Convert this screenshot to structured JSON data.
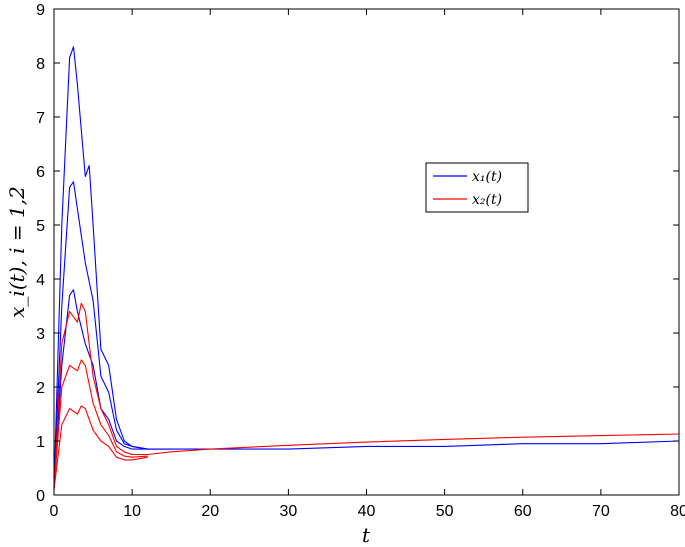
{
  "chart_data": {
    "type": "line",
    "title": "",
    "xlabel": "t",
    "ylabel": "x_i(t), i = 1,2",
    "xlim": [
      0,
      80
    ],
    "ylim": [
      0,
      9
    ],
    "x_ticks": [
      "0",
      "10",
      "20",
      "30",
      "40",
      "50",
      "60",
      "70",
      "80"
    ],
    "y_ticks": [
      "0",
      "1",
      "2",
      "3",
      "4",
      "5",
      "6",
      "7",
      "8",
      "9"
    ],
    "grid": false,
    "legend_position": "upper-right",
    "legend": [
      {
        "label": "x₁(t)",
        "color": "#0000ff"
      },
      {
        "label": "x₂(t)",
        "color": "#ff0000"
      }
    ],
    "series": [
      {
        "name": "x₁(t)",
        "color": "#0000ff",
        "x": [
          0,
          1,
          2,
          2.5,
          3,
          4,
          4.5,
          5,
          6,
          7,
          8,
          9,
          10,
          12,
          15,
          20,
          30,
          40,
          50,
          60,
          70,
          80
        ],
        "y": [
          0.1,
          5.0,
          8.1,
          8.3,
          7.6,
          5.9,
          6.1,
          5.0,
          2.7,
          2.4,
          1.4,
          1.0,
          0.9,
          0.85,
          0.85,
          0.85,
          0.85,
          0.9,
          0.9,
          0.95,
          0.95,
          1.0
        ]
      },
      {
        "name": "x₁(t)",
        "color": "#0000ff",
        "x": [
          0,
          1,
          2,
          2.5,
          3,
          4,
          5,
          6,
          7,
          8,
          9,
          10,
          12,
          15
        ],
        "y": [
          0.1,
          3.5,
          5.7,
          5.8,
          5.3,
          4.3,
          3.6,
          2.2,
          1.9,
          1.2,
          0.95,
          0.9,
          0.85,
          0.85
        ]
      },
      {
        "name": "x₁(t)",
        "color": "#0000ff",
        "x": [
          0,
          1,
          2,
          2.5,
          3,
          4,
          5,
          6,
          7,
          8,
          9,
          10,
          12
        ],
        "y": [
          0.1,
          2.4,
          3.7,
          3.8,
          3.4,
          2.8,
          2.4,
          1.6,
          1.4,
          1.0,
          0.9,
          0.85,
          0.85
        ]
      },
      {
        "name": "x₂(t)",
        "color": "#ff0000",
        "x": [
          0,
          1,
          2,
          3,
          3.5,
          4,
          5,
          6,
          7,
          8,
          9,
          10,
          12,
          15,
          20,
          30,
          40,
          50,
          60,
          70,
          80
        ],
        "y": [
          0.1,
          2.8,
          3.4,
          3.2,
          3.55,
          3.4,
          2.2,
          1.6,
          1.3,
          0.9,
          0.8,
          0.75,
          0.75,
          0.8,
          0.85,
          0.92,
          0.98,
          1.03,
          1.07,
          1.1,
          1.13
        ]
      },
      {
        "name": "x₂(t)",
        "color": "#ff0000",
        "x": [
          0,
          1,
          2,
          3,
          3.5,
          4,
          5,
          6,
          7,
          8,
          9,
          10,
          12
        ],
        "y": [
          0.1,
          2.0,
          2.4,
          2.3,
          2.5,
          2.4,
          1.7,
          1.3,
          1.1,
          0.8,
          0.72,
          0.7,
          0.72
        ]
      },
      {
        "name": "x₂(t)",
        "color": "#ff0000",
        "x": [
          0,
          1,
          2,
          3,
          3.5,
          4,
          5,
          6,
          7,
          8,
          9,
          10,
          12
        ],
        "y": [
          0.1,
          1.3,
          1.6,
          1.5,
          1.65,
          1.6,
          1.2,
          1.0,
          0.9,
          0.7,
          0.65,
          0.65,
          0.7
        ]
      }
    ]
  }
}
